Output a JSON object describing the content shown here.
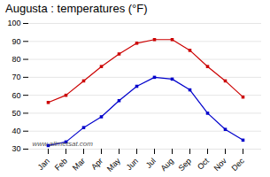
{
  "chart_data": {
    "type": "line",
    "title": "Augusta : temperatures (°F)",
    "categories": [
      "Jan",
      "Feb",
      "Mar",
      "Apr",
      "May",
      "Jun",
      "Jul",
      "Aug",
      "Sep",
      "Oct",
      "Nov",
      "Dec"
    ],
    "series": [
      {
        "color": "#cc0000",
        "marker": "square",
        "values": [
          56,
          60,
          68,
          76,
          83,
          89,
          91,
          91,
          85,
          76,
          68,
          59
        ]
      },
      {
        "color": "#0000cc",
        "marker": "square",
        "values": [
          32,
          34,
          42,
          48,
          57,
          65,
          70,
          69,
          63,
          50,
          41,
          35
        ]
      }
    ],
    "ylim": [
      30,
      100
    ],
    "yticks": [
      30,
      40,
      50,
      60,
      70,
      80,
      90,
      100
    ],
    "grid": true,
    "annotations": [
      "www.allmetsat.com"
    ]
  }
}
